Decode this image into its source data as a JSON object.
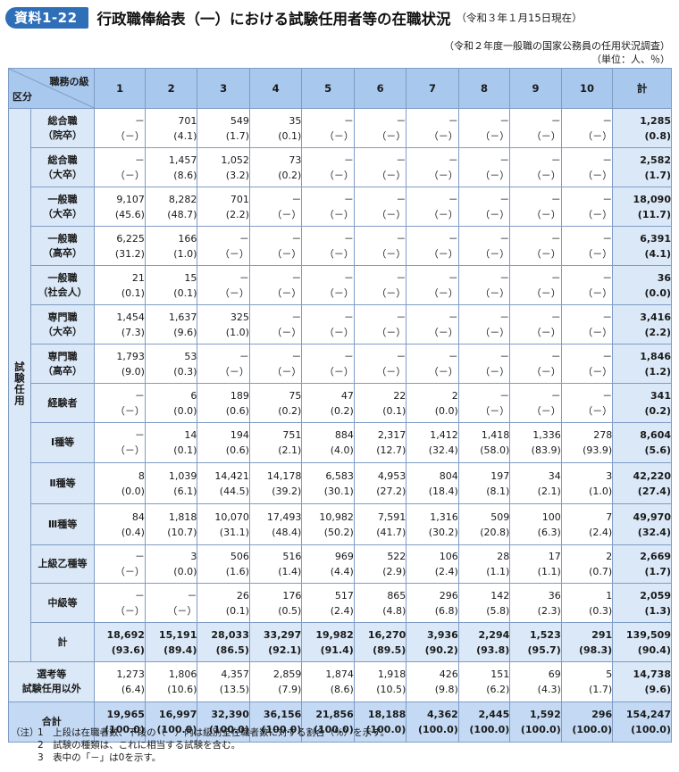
{
  "header": {
    "badge": "資料1-22",
    "title": "行政職俸給表（一）における試験任用者等の在職状況",
    "date_note": "（令和３年１月15日現在）"
  },
  "source": {
    "line1": "（令和２年度一般職の国家公務員の任用状況調査）",
    "line2": "（単位：人、％）"
  },
  "table": {
    "corner_top": "職務の級",
    "corner_bottom": "区分",
    "columns": [
      "1",
      "2",
      "3",
      "4",
      "5",
      "6",
      "7",
      "8",
      "9",
      "10",
      "計"
    ],
    "side_label": "試験任用",
    "rows": [
      {
        "label1": "総合職",
        "label2": "（院卒）",
        "values": [
          "－",
          "701",
          "549",
          "35",
          "－",
          "－",
          "－",
          "－",
          "－",
          "－"
        ],
        "pcts": [
          "（－）",
          "(4.1)",
          "(1.7)",
          "(0.1)",
          "（－）",
          "（－）",
          "（－）",
          "（－）",
          "（－）",
          "（－）"
        ],
        "total": "1,285",
        "total_pct": "(0.8)"
      },
      {
        "label1": "総合職",
        "label2": "（大卒）",
        "values": [
          "－",
          "1,457",
          "1,052",
          "73",
          "－",
          "－",
          "－",
          "－",
          "－",
          "－"
        ],
        "pcts": [
          "（－）",
          "(8.6)",
          "(3.2)",
          "(0.2)",
          "（－）",
          "（－）",
          "（－）",
          "（－）",
          "（－）",
          "（－）"
        ],
        "total": "2,582",
        "total_pct": "(1.7)"
      },
      {
        "label1": "一般職",
        "label2": "（大卒）",
        "values": [
          "9,107",
          "8,282",
          "701",
          "－",
          "－",
          "－",
          "－",
          "－",
          "－",
          "－"
        ],
        "pcts": [
          "(45.6)",
          "(48.7)",
          "(2.2)",
          "（－）",
          "（－）",
          "（－）",
          "（－）",
          "（－）",
          "（－）",
          "（－）"
        ],
        "total": "18,090",
        "total_pct": "(11.7)"
      },
      {
        "label1": "一般職",
        "label2": "（高卒）",
        "values": [
          "6,225",
          "166",
          "－",
          "－",
          "－",
          "－",
          "－",
          "－",
          "－",
          "－"
        ],
        "pcts": [
          "(31.2)",
          "(1.0)",
          "（－）",
          "（－）",
          "（－）",
          "（－）",
          "（－）",
          "（－）",
          "（－）",
          "（－）"
        ],
        "total": "6,391",
        "total_pct": "(4.1)"
      },
      {
        "label1": "一般職",
        "label2": "（社会人）",
        "values": [
          "21",
          "15",
          "－",
          "－",
          "－",
          "－",
          "－",
          "－",
          "－",
          "－"
        ],
        "pcts": [
          "(0.1)",
          "(0.1)",
          "（－）",
          "（－）",
          "（－）",
          "（－）",
          "（－）",
          "（－）",
          "（－）",
          "（－）"
        ],
        "total": "36",
        "total_pct": "(0.0)"
      },
      {
        "label1": "専門職",
        "label2": "（大卒）",
        "values": [
          "1,454",
          "1,637",
          "325",
          "－",
          "－",
          "－",
          "－",
          "－",
          "－",
          "－"
        ],
        "pcts": [
          "(7.3)",
          "(9.6)",
          "(1.0)",
          "（－）",
          "（－）",
          "（－）",
          "（－）",
          "（－）",
          "（－）",
          "（－）"
        ],
        "total": "3,416",
        "total_pct": "(2.2)"
      },
      {
        "label1": "専門職",
        "label2": "（高卒）",
        "values": [
          "1,793",
          "53",
          "－",
          "－",
          "－",
          "－",
          "－",
          "－",
          "－",
          "－"
        ],
        "pcts": [
          "(9.0)",
          "(0.3)",
          "（－）",
          "（－）",
          "（－）",
          "（－）",
          "（－）",
          "（－）",
          "（－）",
          "（－）"
        ],
        "total": "1,846",
        "total_pct": "(1.2)"
      },
      {
        "label1": "経験者",
        "label2": "",
        "values": [
          "－",
          "6",
          "189",
          "75",
          "47",
          "22",
          "2",
          "－",
          "－",
          "－"
        ],
        "pcts": [
          "（－）",
          "(0.0)",
          "(0.6)",
          "(0.2)",
          "(0.2)",
          "(0.1)",
          "(0.0)",
          "（－）",
          "（－）",
          "（－）"
        ],
        "total": "341",
        "total_pct": "(0.2)"
      },
      {
        "label1": "Ⅰ種等",
        "label2": "",
        "values": [
          "－",
          "14",
          "194",
          "751",
          "884",
          "2,317",
          "1,412",
          "1,418",
          "1,336",
          "278"
        ],
        "pcts": [
          "（－）",
          "(0.1)",
          "(0.6)",
          "(2.1)",
          "(4.0)",
          "(12.7)",
          "(32.4)",
          "(58.0)",
          "(83.9)",
          "(93.9)"
        ],
        "total": "8,604",
        "total_pct": "(5.6)"
      },
      {
        "label1": "Ⅱ種等",
        "label2": "",
        "values": [
          "8",
          "1,039",
          "14,421",
          "14,178",
          "6,583",
          "4,953",
          "804",
          "197",
          "34",
          "3"
        ],
        "pcts": [
          "(0.0)",
          "(6.1)",
          "(44.5)",
          "(39.2)",
          "(30.1)",
          "(27.2)",
          "(18.4)",
          "(8.1)",
          "(2.1)",
          "(1.0)"
        ],
        "total": "42,220",
        "total_pct": "(27.4)"
      },
      {
        "label1": "Ⅲ種等",
        "label2": "",
        "values": [
          "84",
          "1,818",
          "10,070",
          "17,493",
          "10,982",
          "7,591",
          "1,316",
          "509",
          "100",
          "7"
        ],
        "pcts": [
          "(0.4)",
          "(10.7)",
          "(31.1)",
          "(48.4)",
          "(50.2)",
          "(41.7)",
          "(30.2)",
          "(20.8)",
          "(6.3)",
          "(2.4)"
        ],
        "total": "49,970",
        "total_pct": "(32.4)"
      },
      {
        "label1": "上級乙種等",
        "label2": "",
        "values": [
          "－",
          "3",
          "506",
          "516",
          "969",
          "522",
          "106",
          "28",
          "17",
          "2"
        ],
        "pcts": [
          "（－）",
          "(0.0)",
          "(1.6)",
          "(1.4)",
          "(4.4)",
          "(2.9)",
          "(2.4)",
          "(1.1)",
          "(1.1)",
          "(0.7)"
        ],
        "total": "2,669",
        "total_pct": "(1.7)"
      },
      {
        "label1": "中級等",
        "label2": "",
        "values": [
          "－",
          "－",
          "26",
          "176",
          "517",
          "865",
          "296",
          "142",
          "36",
          "1"
        ],
        "pcts": [
          "（－）",
          "（－）",
          "(0.1)",
          "(0.5)",
          "(2.4)",
          "(4.8)",
          "(6.8)",
          "(5.8)",
          "(2.3)",
          "(0.3)"
        ],
        "total": "2,059",
        "total_pct": "(1.3)"
      },
      {
        "label1": "計",
        "label2": "",
        "values": [
          "18,692",
          "15,191",
          "28,033",
          "33,297",
          "19,982",
          "16,270",
          "3,936",
          "2,294",
          "1,523",
          "291"
        ],
        "pcts": [
          "(93.6)",
          "(89.4)",
          "(86.5)",
          "(92.1)",
          "(91.4)",
          "(89.5)",
          "(90.2)",
          "(93.8)",
          "(95.7)",
          "(98.3)"
        ],
        "total": "139,509",
        "total_pct": "(90.4)"
      }
    ],
    "other_row": {
      "label1": "選考等",
      "label2": "試験任用以外",
      "values": [
        "1,273",
        "1,806",
        "4,357",
        "2,859",
        "1,874",
        "1,918",
        "426",
        "151",
        "69",
        "5"
      ],
      "pcts": [
        "(6.4)",
        "(10.6)",
        "(13.5)",
        "(7.9)",
        "(8.6)",
        "(10.5)",
        "(9.8)",
        "(6.2)",
        "(4.3)",
        "(1.7)"
      ],
      "total": "14,738",
      "total_pct": "(9.6)"
    },
    "grand_row": {
      "label1": "合計",
      "values": [
        "19,965",
        "16,997",
        "32,390",
        "36,156",
        "21,856",
        "18,188",
        "4,362",
        "2,445",
        "1,592",
        "296"
      ],
      "pcts": [
        "(100.0)",
        "(100.0)",
        "(100.0)",
        "(100.0)",
        "(100.0)",
        "(100.0)",
        "(100.0)",
        "(100.0)",
        "(100.0)",
        "(100.0)"
      ],
      "total": "154,247",
      "total_pct": "(100.0)"
    }
  },
  "notes": {
    "prefix": "（注）",
    "items": [
      "1　上段は在職者数、下段の（　）内は級別全在職者数に対する割合（％）を示す。",
      "2　試験の種類は、これに相当する試験を含む。",
      "3　表中の「－」は0を示す。"
    ]
  }
}
